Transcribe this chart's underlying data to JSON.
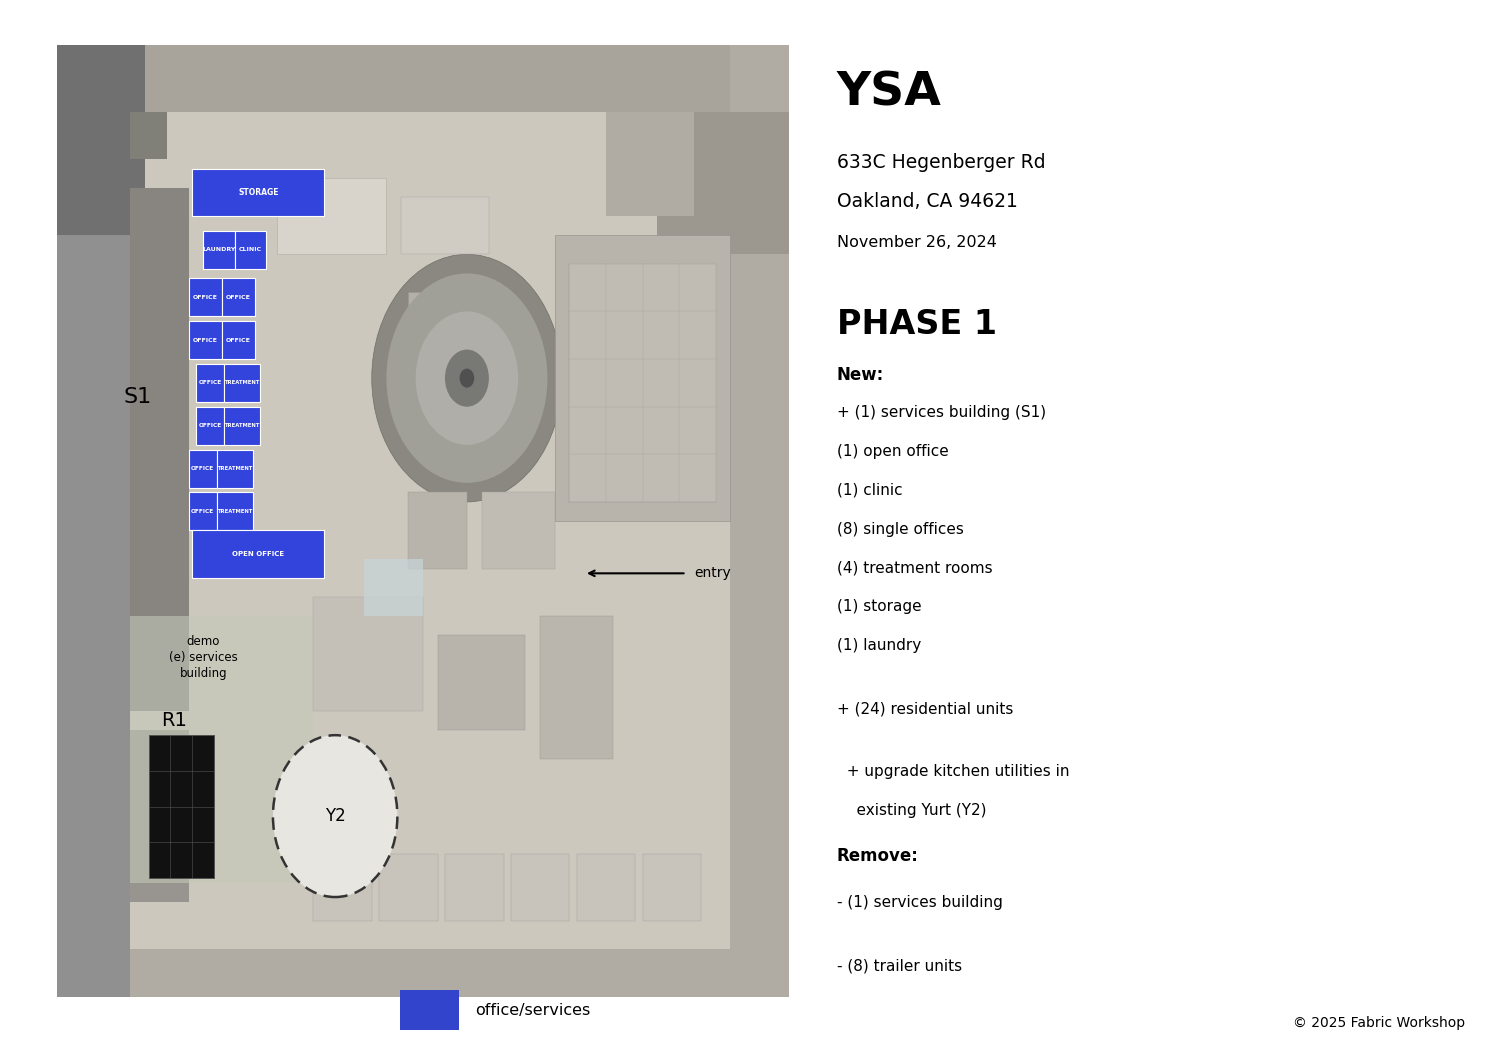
{
  "title": "YSA",
  "address_line1": "633C Hegenberger Rd",
  "address_line2": "Oakland, CA 94621",
  "date": "November 26, 2024",
  "phase": "PHASE 1",
  "new_header": "New:",
  "new_items_raw": [
    {
      "text": "+ (1) services building (S1)",
      "indent": 0
    },
    {
      "text": "(1) open office",
      "indent": 1
    },
    {
      "text": "(1) clinic",
      "indent": 1
    },
    {
      "text": "(8) single offices",
      "indent": 1
    },
    {
      "text": "(4) treatment rooms",
      "indent": 1
    },
    {
      "text": "(1) storage",
      "indent": 1
    },
    {
      "text": "(1) laundry",
      "indent": 1
    },
    {
      "text": "",
      "indent": 0
    },
    {
      "text": "+ (24) residential units",
      "indent": 0
    },
    {
      "text": "",
      "indent": 0
    },
    {
      "text": "  + upgrade kitchen utilities in",
      "indent": 0
    },
    {
      "text": "    existing Yurt (Y2)",
      "indent": 0
    }
  ],
  "remove_header": "Remove:",
  "remove_items_raw": [
    {
      "text": "- (1) services building",
      "indent": 0
    },
    {
      "text": "",
      "indent": 0
    },
    {
      "text": "- (8) trailer units",
      "indent": 0
    }
  ],
  "legend_label": "office/services",
  "legend_color": "#3344cc",
  "copyright": "© 2025 Fabric Workshop",
  "blue": "#3344dd",
  "blue_dark": "#2233aa",
  "dark_panel": "#1a1a1a",
  "s1_label": "S1",
  "r1_label": "R1",
  "y2_label": "Y2",
  "entry_label": "entry",
  "bg_color": "#ffffff",
  "map_border": "#cccccc",
  "aerial_base": "#c8c0b0",
  "aerial_light": "#d8d0c0",
  "aerial_mid": "#b8b0a0",
  "aerial_dark": "#888080"
}
